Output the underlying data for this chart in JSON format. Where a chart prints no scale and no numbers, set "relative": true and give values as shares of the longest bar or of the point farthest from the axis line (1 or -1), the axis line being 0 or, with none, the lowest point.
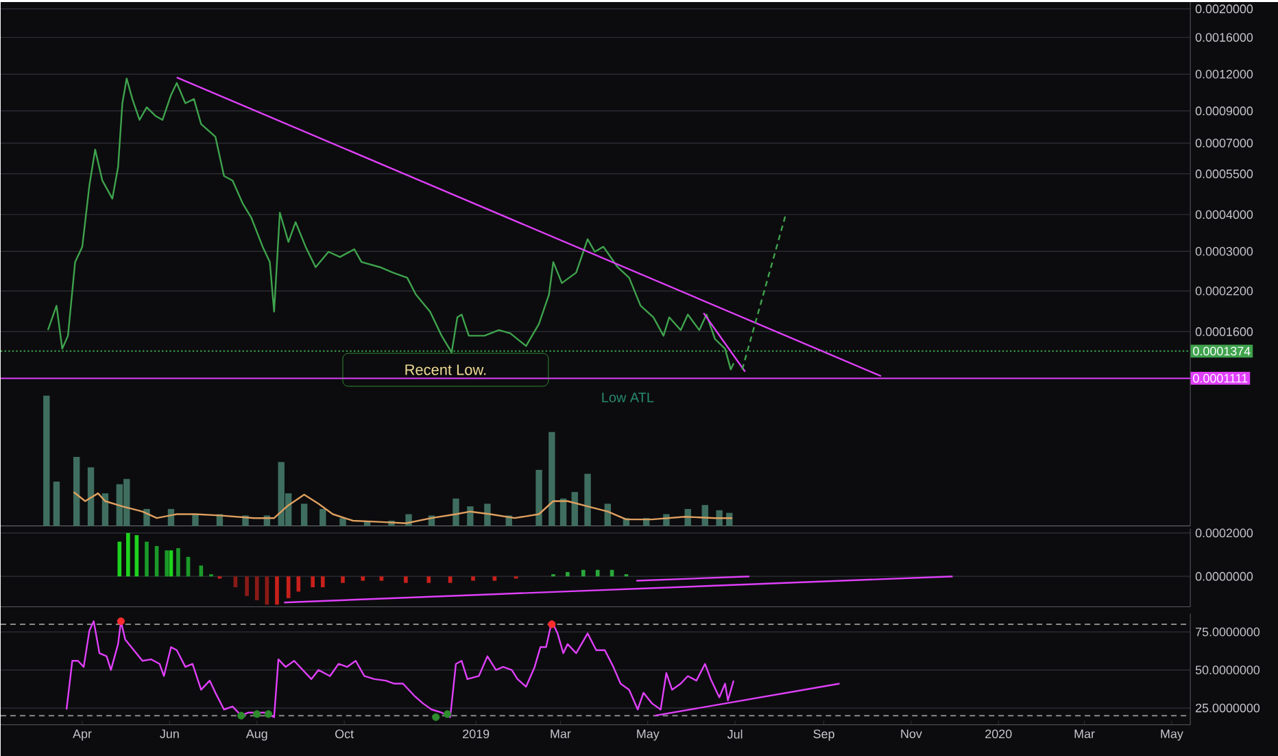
{
  "chart_data": [
    {
      "type": "line",
      "log": true,
      "xlim": [
        "2018-02-03",
        "2020-05-14"
      ],
      "ylim": [
        3.5e-05,
        0.00211
      ],
      "yticks": [
        {
          "value": 0.002,
          "label": "0.0020000"
        },
        {
          "value": 0.0016,
          "label": "0.0016000"
        },
        {
          "value": 0.0012,
          "label": "0.0012000"
        },
        {
          "value": 0.0009,
          "label": "0.0009000"
        },
        {
          "value": 0.0007,
          "label": "0.0007000"
        },
        {
          "value": 0.00055,
          "label": "0.0005500"
        },
        {
          "value": 0.0004,
          "label": "0.0004000"
        },
        {
          "value": 0.0003,
          "label": "0.0003000"
        },
        {
          "value": 0.00022,
          "label": "0.0002200"
        },
        {
          "value": 0.00016,
          "label": "0.0001600"
        }
      ],
      "tick_labels": "y",
      "grid": "y",
      "series": [
        {
          "color": "#3fa34d",
          "x": [
            "2018-03-08",
            "2018-03-14",
            "2018-03-18",
            "2018-03-22",
            "2018-03-27",
            "2018-04-01",
            "2018-04-06",
            "2018-04-10",
            "2018-04-15",
            "2018-04-22",
            "2018-04-26",
            "2018-04-29",
            "2018-05-02",
            "2018-05-06",
            "2018-05-11",
            "2018-05-16",
            "2018-05-22",
            "2018-05-27",
            "2018-06-02",
            "2018-06-06",
            "2018-06-12",
            "2018-06-18",
            "2018-06-23",
            "2018-07-03",
            "2018-07-09",
            "2018-07-15",
            "2018-07-22",
            "2018-07-28",
            "2018-08-05",
            "2018-08-10",
            "2018-08-13",
            "2018-08-17",
            "2018-08-23",
            "2018-08-28",
            "2018-09-04",
            "2018-09-11",
            "2018-09-20",
            "2018-09-28",
            "2018-10-08",
            "2018-10-13",
            "2018-10-26",
            "2018-11-04",
            "2018-11-14",
            "2018-11-20",
            "2018-11-30",
            "2018-12-08",
            "2018-12-15",
            "2018-12-19",
            "2018-12-22",
            "2018-12-27",
            "2019-01-07",
            "2019-01-17",
            "2019-01-25",
            "2019-02-05",
            "2019-02-14",
            "2019-02-21",
            "2019-02-24",
            "2019-03-02",
            "2019-03-12",
            "2019-03-20",
            "2019-03-25",
            "2019-03-31",
            "2019-04-10",
            "2019-04-18",
            "2019-04-26",
            "2019-05-05",
            "2019-05-12",
            "2019-05-16",
            "2019-05-24",
            "2019-05-29",
            "2019-06-06",
            "2019-06-11",
            "2019-06-17",
            "2019-06-24",
            "2019-06-28",
            "2019-06-30"
          ],
          "values": [
            0.000162,
            0.000196,
            0.00014,
            0.000155,
            0.000276,
            0.000311,
            0.000504,
            0.000665,
            0.000522,
            0.000453,
            0.00058,
            0.000956,
            0.00116,
            0.000988,
            0.000839,
            0.000926,
            0.000867,
            0.000839,
            0.00102,
            0.00112,
            0.000956,
            0.000988,
            0.000812,
            0.000735,
            0.000541,
            0.000522,
            0.000437,
            0.000391,
            0.000311,
            0.000276,
            0.000187,
            0.000406,
            0.000323,
            0.000377,
            0.000311,
            0.000265,
            0.000299,
            0.000287,
            0.000305,
            0.000276,
            0.000265,
            0.000254,
            0.000244,
            0.000214,
            0.000187,
            0.000155,
            0.000136,
            0.000179,
            0.000183,
            0.000155,
            0.000155,
            0.000162,
            0.000158,
            0.000143,
            0.00017,
            0.000214,
            0.000276,
            0.000234,
            0.000254,
            0.00033,
            0.000299,
            0.000311,
            0.000265,
            0.000244,
            0.000196,
            0.000179,
            0.000155,
            0.000179,
            0.000162,
            0.000183,
            0.000162,
            0.000183,
            0.000151,
            0.00014,
            0.000119,
            0.000125
          ]
        },
        {
          "color": "#e040fb",
          "x": [
            "2018-06-06",
            "2019-10-11"
          ],
          "values": [
            0.00117,
            0.000113
          ]
        },
        {
          "color": "#e040fb",
          "x": [
            "2019-06-09",
            "2019-07-08"
          ],
          "values": [
            0.000185,
            0.000117
          ]
        },
        {
          "color": "#3fa34d",
          "line_style": "dashed",
          "x": [
            "2019-07-06",
            "2019-08-05"
          ],
          "values": [
            0.000119,
            0.000394
          ]
        }
      ],
      "ref_lines": [
        {
          "axis": "y",
          "value": 0.0001374,
          "label": "0.0001374",
          "color": "#3fa34d",
          "line_style": "dotted"
        },
        {
          "axis": "y",
          "value": 0.0001111,
          "label": "0.0001111",
          "color": "#e040fb",
          "line_style": "solid"
        }
      ],
      "annotations": [
        "Recent Low.",
        "Low ATL"
      ]
    },
    {
      "type": "bar",
      "relative": true,
      "xlim": [
        "2018-02-03",
        "2020-05-14"
      ],
      "tick_labels": false,
      "series": [
        {
          "color": "#3f6e5f",
          "x": [
            "2018-03-07",
            "2018-03-14",
            "2018-03-28",
            "2018-04-07",
            "2018-04-17",
            "2018-04-27",
            "2018-05-02",
            "2018-05-16",
            "2018-06-02",
            "2018-06-19",
            "2018-07-06",
            "2018-07-24",
            "2018-08-08",
            "2018-08-18",
            "2018-08-23",
            "2018-09-03",
            "2018-09-16",
            "2018-09-30",
            "2018-10-17",
            "2018-11-03",
            "2018-11-15",
            "2018-12-01",
            "2018-12-18",
            "2018-12-28",
            "2019-01-09",
            "2019-01-24",
            "2019-02-14",
            "2019-02-23",
            "2019-03-03",
            "2019-03-11",
            "2019-03-20",
            "2019-04-03",
            "2019-04-16",
            "2019-04-30",
            "2019-05-14",
            "2019-05-29",
            "2019-06-10",
            "2019-06-20",
            "2019-06-27"
          ],
          "values": [
            1,
            0.34,
            0.53,
            0.45,
            0.25,
            0.32,
            0.36,
            0.13,
            0.13,
            0.09,
            0.09,
            0.08,
            0.08,
            0.49,
            0.25,
            0.17,
            0.13,
            0.06,
            0.04,
            0.04,
            0.09,
            0.08,
            0.21,
            0.15,
            0.17,
            0.08,
            0.43,
            0.72,
            0.21,
            0.26,
            0.4,
            0.17,
            0.06,
            0.06,
            0.09,
            0.13,
            0.16,
            0.12,
            0.1
          ]
        },
        {
          "type": "line",
          "color": "#e0a060",
          "x": [
            "2018-03-26",
            "2018-04-03",
            "2018-04-12",
            "2018-04-17",
            "2018-04-29",
            "2018-05-13",
            "2018-05-23",
            "2018-06-06",
            "2018-06-19",
            "2018-07-06",
            "2018-07-30",
            "2018-08-13",
            "2018-08-22",
            "2018-09-03",
            "2018-09-13",
            "2018-09-23",
            "2018-10-07",
            "2018-10-27",
            "2018-11-13",
            "2018-12-01",
            "2018-12-18",
            "2018-12-28",
            "2019-01-11",
            "2019-01-28",
            "2019-02-14",
            "2019-02-24",
            "2019-03-06",
            "2019-03-20",
            "2019-04-03",
            "2019-04-16",
            "2019-05-04",
            "2019-05-27",
            "2019-06-17",
            "2019-06-29"
          ],
          "values": [
            0.26,
            0.19,
            0.25,
            0.19,
            0.15,
            0.11,
            0.06,
            0.09,
            0.09,
            0.08,
            0.06,
            0.06,
            0.15,
            0.24,
            0.17,
            0.09,
            0.04,
            0.03,
            0.02,
            0.06,
            0.09,
            0.11,
            0.09,
            0.06,
            0.09,
            0.19,
            0.19,
            0.15,
            0.11,
            0.05,
            0.05,
            0.07,
            0.06,
            0.06
          ]
        }
      ]
    },
    {
      "type": "bar",
      "xlim": [
        "2018-02-03",
        "2020-05-14"
      ],
      "ylim": [
        -0.00014,
        0.00022
      ],
      "yticks": [
        {
          "value": 0.0002,
          "label": "0.0002000"
        },
        {
          "value": 0,
          "label": "0.0000000"
        }
      ],
      "tick_labels": "y",
      "grid": "y",
      "series": [
        {
          "x": [
            "2018-04-27",
            "2018-05-03",
            "2018-05-09",
            "2018-05-16",
            "2018-05-23",
            "2018-05-30",
            "2018-06-02",
            "2018-06-07",
            "2018-06-14",
            "2018-06-23",
            "2018-06-30",
            "2018-07-06",
            "2018-07-17",
            "2018-07-25",
            "2018-08-01",
            "2018-08-08",
            "2018-08-15",
            "2018-08-23",
            "2018-08-30",
            "2018-09-09",
            "2018-09-16",
            "2018-09-30",
            "2018-10-14",
            "2018-10-27",
            "2018-11-13",
            "2018-11-29",
            "2018-12-14",
            "2018-12-30",
            "2019-01-14",
            "2019-01-29",
            "2019-02-14",
            "2019-02-24",
            "2019-03-06",
            "2019-03-17",
            "2019-03-27",
            "2019-04-06",
            "2019-04-16",
            "2019-04-23"
          ],
          "values": [
            0.00016,
            0.0002,
            0.00019,
            0.00016,
            0.00014,
            0.00012,
            0.00012,
            0.00013,
            9e-05,
            5e-05,
            1e-05,
            -1e-05,
            -5e-05,
            -9e-05,
            -0.00011,
            -0.00013,
            -0.00013,
            -0.0001,
            -7e-05,
            -5e-05,
            -5e-05,
            -3e-05,
            -2e-05,
            -2e-05,
            -3e-05,
            -3e-05,
            -3e-05,
            -2e-05,
            -2e-05,
            -1e-05,
            0,
            1e-05,
            2e-05,
            3e-05,
            3e-05,
            3e-05,
            1e-05,
            0
          ],
          "colors": [
            "#1ed31e",
            "#1ed31e",
            "#1ed31e",
            "#1b9a2a",
            "#1b9a2a",
            "#1b9a2a",
            "#1ed31e",
            "#1b9a2a",
            "#1b9a2a",
            "#1b9a2a",
            "#1b9a2a",
            "#c8201c",
            "#8a1a16",
            "#8a1a16",
            "#8a1a16",
            "#8a1a16",
            "#c8201c",
            "#c8201c",
            "#c8201c",
            "#c8201c",
            "#c8201c",
            "#c8201c",
            "#c8201c",
            "#c8201c",
            "#c8201c",
            "#c8201c",
            "#c8201c",
            "#c8201c",
            "#c8201c",
            "#c8201c",
            "#c8201c",
            "#2aa83a",
            "#2aa83a",
            "#2aa83a",
            "#2aa83a",
            "#2aa83a",
            "#2aa83a",
            "#2aa83a"
          ]
        },
        {
          "type": "line",
          "color": "#e040fb",
          "x": [
            "2018-08-20",
            "2019-11-30"
          ],
          "values": [
            -0.00012,
            0
          ]
        },
        {
          "type": "line",
          "color": "#e040fb",
          "x": [
            "2019-04-23",
            "2019-07-11"
          ],
          "values": [
            -2e-05,
            0
          ]
        }
      ]
    },
    {
      "type": "line",
      "xlim": [
        "2018-02-03",
        "2020-05-14"
      ],
      "ylim": [
        14,
        87
      ],
      "yticks": [
        {
          "value": 75,
          "label": "75.0000000"
        },
        {
          "value": 50,
          "label": "50.0000000"
        },
        {
          "value": 25,
          "label": "25.0000000"
        }
      ],
      "xticks": [
        {
          "value": "2018-04-01",
          "label": "Apr"
        },
        {
          "value": "2018-06-01",
          "label": "Jun"
        },
        {
          "value": "2018-08-01",
          "label": "Aug"
        },
        {
          "value": "2018-10-01",
          "label": "Oct"
        },
        {
          "value": "2019-01-01",
          "label": "2019"
        },
        {
          "value": "2019-03-01",
          "label": "Mar"
        },
        {
          "value": "2019-05-01",
          "label": "May"
        },
        {
          "value": "2019-07-01",
          "label": "Jul"
        },
        {
          "value": "2019-09-01",
          "label": "Sep"
        },
        {
          "value": "2019-11-01",
          "label": "Nov"
        },
        {
          "value": "2020-01-01",
          "label": "2020"
        },
        {
          "value": "2020-03-01",
          "label": "Mar"
        },
        {
          "value": "2020-05-01",
          "label": "May"
        }
      ],
      "grid": "y",
      "series": [
        {
          "color": "#e040fb",
          "x": [
            "2018-03-21",
            "2018-03-25",
            "2018-03-29",
            "2018-04-02",
            "2018-04-06",
            "2018-04-09",
            "2018-04-13",
            "2018-04-18",
            "2018-04-21",
            "2018-04-26",
            "2018-04-28",
            "2018-05-01",
            "2018-05-07",
            "2018-05-13",
            "2018-05-19",
            "2018-05-25",
            "2018-05-28",
            "2018-06-02",
            "2018-06-06",
            "2018-06-12",
            "2018-06-17",
            "2018-06-23",
            "2018-06-29",
            "2018-07-03",
            "2018-07-09",
            "2018-07-15",
            "2018-07-21",
            "2018-07-26",
            "2018-08-01",
            "2018-08-07",
            "2018-08-13",
            "2018-08-16",
            "2018-08-21",
            "2018-08-27",
            "2018-09-02",
            "2018-09-08",
            "2018-09-13",
            "2018-09-21",
            "2018-09-27",
            "2018-10-03",
            "2018-10-09",
            "2018-10-15",
            "2018-10-22",
            "2018-10-30",
            "2018-11-05",
            "2018-11-11",
            "2018-11-19",
            "2018-11-25",
            "2018-12-01",
            "2018-12-08",
            "2018-12-14",
            "2018-12-18",
            "2018-12-22",
            "2018-12-26",
            "2019-01-03",
            "2019-01-09",
            "2019-01-15",
            "2019-01-20",
            "2019-01-26",
            "2019-01-30",
            "2019-02-05",
            "2019-02-11",
            "2019-02-15",
            "2019-02-19",
            "2019-02-23",
            "2019-02-27",
            "2019-03-03",
            "2019-03-06",
            "2019-03-12",
            "2019-03-20",
            "2019-03-26",
            "2019-04-01",
            "2019-04-07",
            "2019-04-12",
            "2019-04-18",
            "2019-04-24",
            "2019-04-28",
            "2019-05-04",
            "2019-05-10",
            "2019-05-14",
            "2019-05-18",
            "2019-05-24",
            "2019-05-29",
            "2019-06-04",
            "2019-06-10",
            "2019-06-14",
            "2019-06-20",
            "2019-06-24",
            "2019-06-26",
            "2019-06-30"
          ],
          "values": [
            24,
            56,
            56,
            52,
            76,
            82,
            61,
            59,
            50,
            67,
            82,
            70,
            63,
            56,
            57,
            54,
            46,
            65,
            63,
            52,
            54,
            37,
            43,
            35,
            24,
            26,
            20,
            22,
            22,
            22,
            19,
            57,
            52,
            56,
            50,
            44,
            50,
            46,
            54,
            52,
            56,
            46,
            44,
            43,
            41,
            41,
            33,
            28,
            24,
            22,
            19,
            54,
            56,
            44,
            46,
            59,
            50,
            52,
            50,
            44,
            39,
            52,
            65,
            65,
            82,
            74,
            61,
            67,
            61,
            74,
            63,
            63,
            52,
            41,
            37,
            24,
            35,
            28,
            24,
            48,
            37,
            41,
            46,
            43,
            54,
            44,
            32,
            41,
            30,
            43
          ]
        },
        {
          "color": "#e040fb",
          "x": [
            "2019-05-06",
            "2019-09-12"
          ],
          "values": [
            20,
            41
          ]
        },
        {
          "type": "scatter",
          "marker": "circle",
          "color": "#ff2d2d",
          "x": [
            "2018-04-28",
            "2019-02-23"
          ],
          "values": [
            82,
            80
          ]
        },
        {
          "type": "scatter",
          "marker": "circle",
          "color": "#2e8b2e",
          "x": [
            "2018-07-21",
            "2018-08-01",
            "2018-08-09",
            "2018-12-04",
            "2018-12-12"
          ],
          "values": [
            20,
            21,
            21,
            19,
            21
          ]
        }
      ],
      "ref_lines": [
        {
          "axis": "y",
          "value": 80,
          "color": "#8a8a8a",
          "line_style": "dashed"
        },
        {
          "axis": "y",
          "value": 20,
          "color": "#8a8a8a",
          "line_style": "dashed"
        }
      ]
    }
  ]
}
